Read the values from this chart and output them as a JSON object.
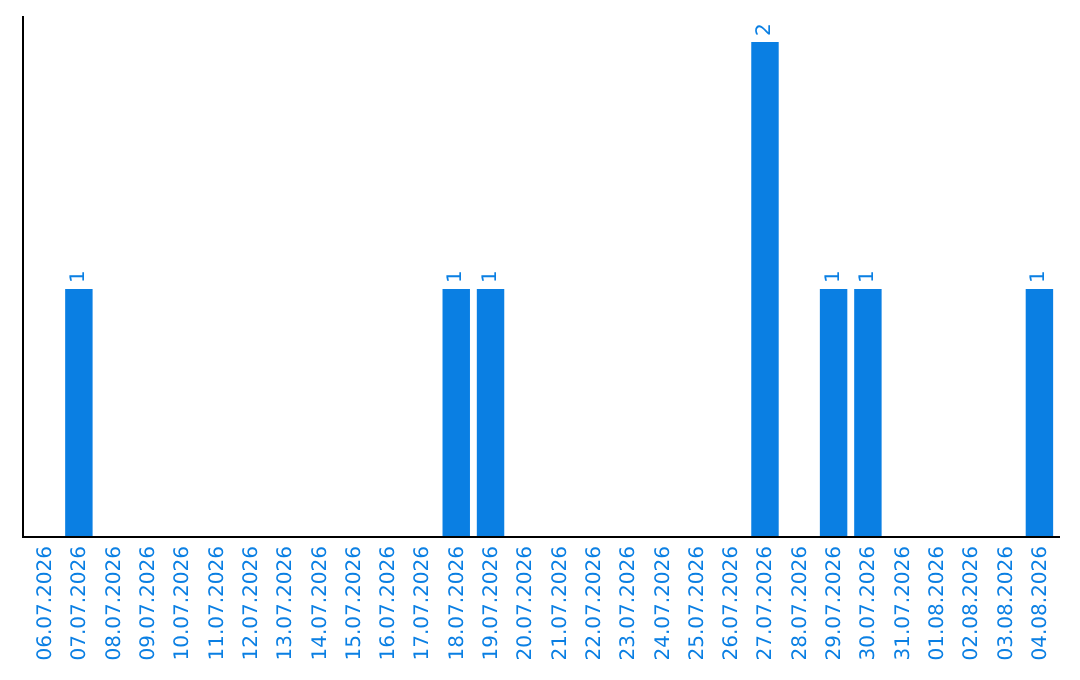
{
  "chart_data": {
    "type": "bar",
    "categories": [
      "06.07.2026",
      "07.07.2026",
      "08.07.2026",
      "09.07.2026",
      "10.07.2026",
      "11.07.2026",
      "12.07.2026",
      "13.07.2026",
      "14.07.2026",
      "15.07.2026",
      "16.07.2026",
      "17.07.2026",
      "18.07.2026",
      "19.07.2026",
      "20.07.2026",
      "21.07.2026",
      "22.07.2026",
      "23.07.2026",
      "24.07.2026",
      "25.07.2026",
      "26.07.2026",
      "27.07.2026",
      "28.07.2026",
      "29.07.2026",
      "30.07.2026",
      "31.07.2026",
      "01.08.2026",
      "02.08.2026",
      "03.08.2026",
      "04.08.2026"
    ],
    "values": [
      0,
      1,
      0,
      0,
      0,
      0,
      0,
      0,
      0,
      0,
      0,
      0,
      1,
      1,
      0,
      0,
      0,
      0,
      0,
      0,
      0,
      2,
      0,
      1,
      1,
      0,
      0,
      0,
      0,
      1
    ],
    "value_labels": [
      null,
      "1",
      null,
      null,
      null,
      null,
      null,
      null,
      null,
      null,
      null,
      null,
      "1",
      "1",
      null,
      null,
      null,
      null,
      null,
      null,
      null,
      "2",
      null,
      "1",
      "1",
      null,
      null,
      null,
      null,
      "1"
    ],
    "color": "#0a7fe3",
    "tick_labels": "x",
    "grid": false
  }
}
